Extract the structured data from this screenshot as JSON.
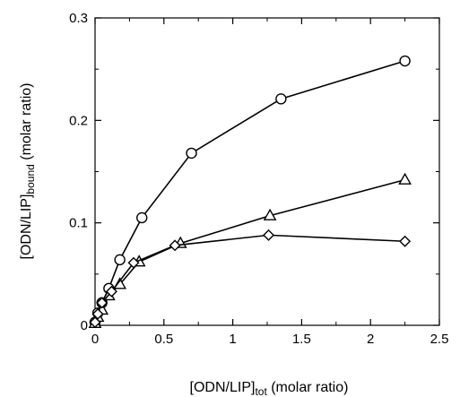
{
  "chart_data": {
    "type": "line",
    "xlabel": {
      "main": "[ODN/LIP]",
      "sub": "tot",
      "rest": " (molar ratio)"
    },
    "ylabel": {
      "main": "[ODN/LIP]",
      "sub": "bound",
      "rest": " (molar ratio)"
    },
    "xlim": [
      0,
      2.5
    ],
    "ylim": [
      0,
      0.3
    ],
    "xticks": [
      0,
      0.5,
      1,
      1.5,
      2,
      2.5
    ],
    "xtick_labels": [
      "0",
      "0.5",
      "1",
      "1.5",
      "2",
      "2.5"
    ],
    "yticks": [
      0,
      0.1,
      0.2,
      0.3
    ],
    "ytick_labels": [
      "0",
      "0.1",
      "0.2",
      "0.3"
    ],
    "grid": false,
    "legend": "none",
    "series": [
      {
        "marker": "circle",
        "x": [
          0,
          0.02,
          0.05,
          0.1,
          0.18,
          0.34,
          0.7,
          1.35,
          2.25
        ],
        "y": [
          0.003,
          0.012,
          0.022,
          0.036,
          0.064,
          0.105,
          0.168,
          0.221,
          0.258
        ]
      },
      {
        "marker": "triangle",
        "x": [
          0,
          0.02,
          0.05,
          0.1,
          0.18,
          0.32,
          0.62,
          1.27,
          2.25
        ],
        "y": [
          0.002,
          0.008,
          0.015,
          0.029,
          0.04,
          0.062,
          0.08,
          0.107,
          0.142
        ]
      },
      {
        "marker": "diamond",
        "x": [
          0,
          0.02,
          0.05,
          0.12,
          0.28,
          0.58,
          1.26,
          2.25
        ],
        "y": [
          0.003,
          0.011,
          0.022,
          0.033,
          0.061,
          0.078,
          0.088,
          0.082
        ]
      }
    ]
  }
}
